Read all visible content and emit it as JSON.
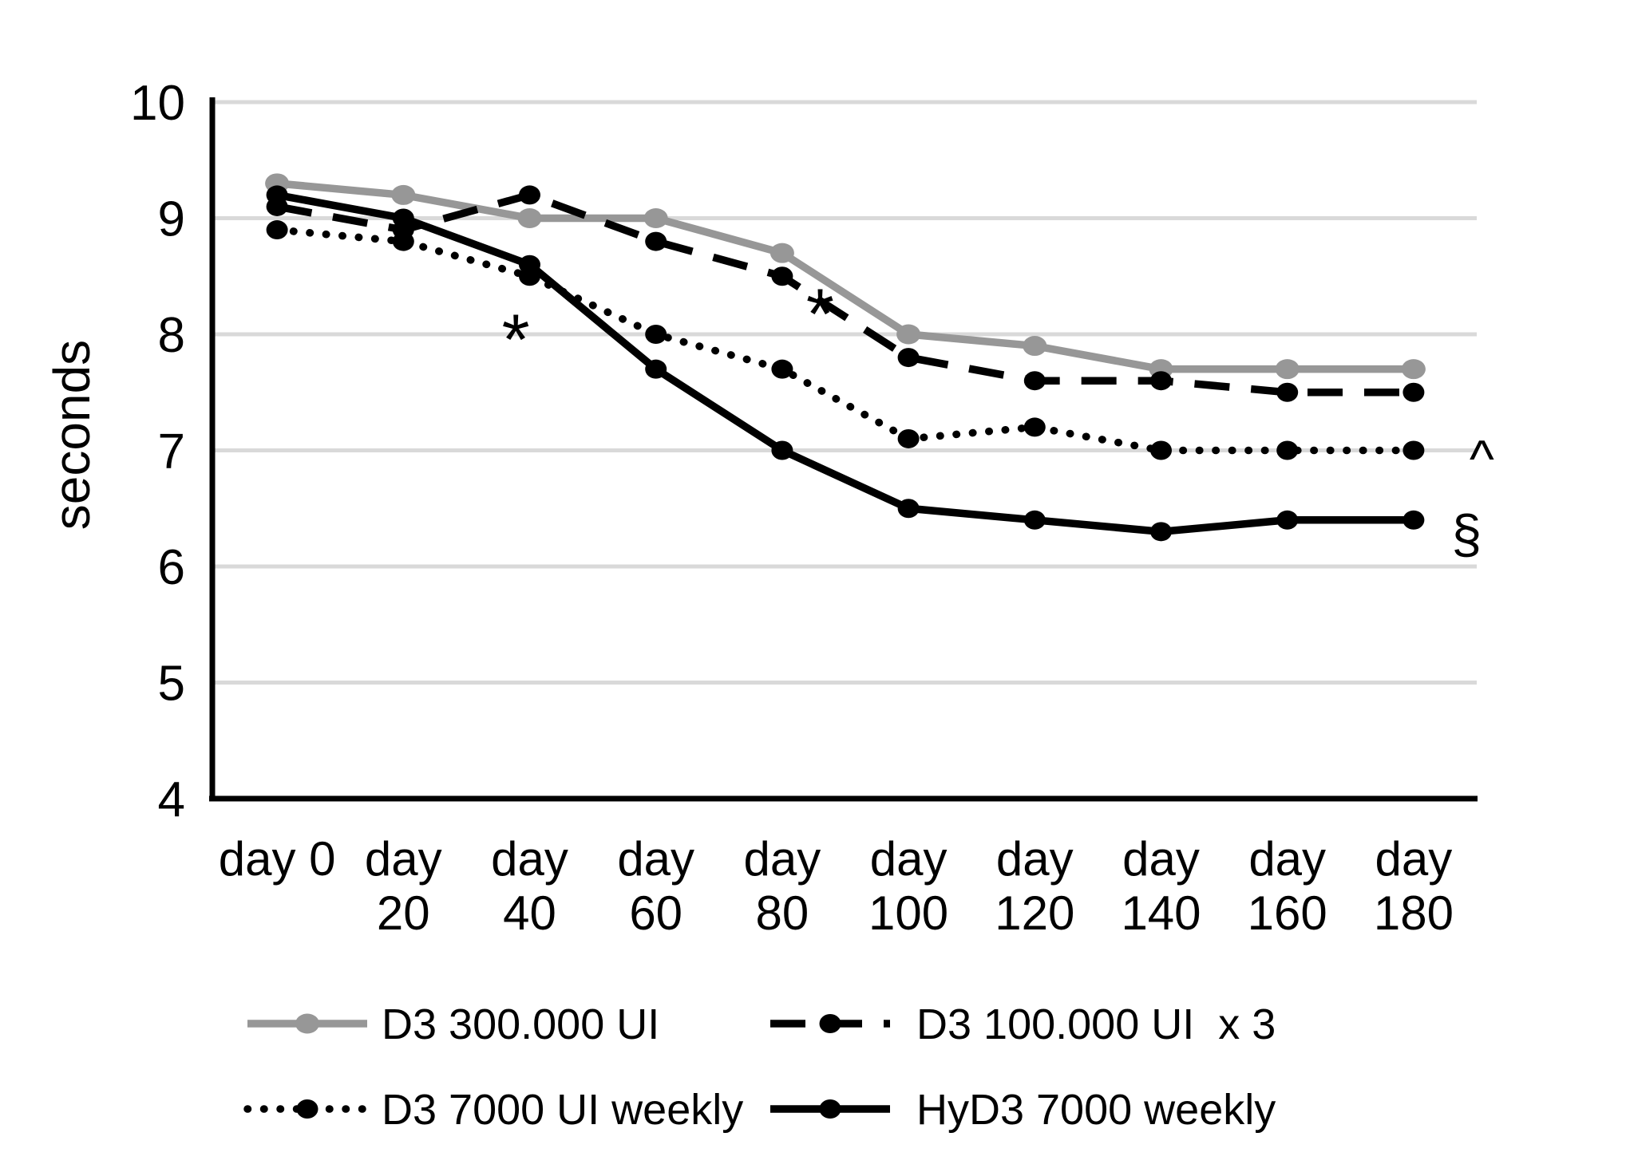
{
  "chart_data": {
    "type": "line",
    "title": "",
    "ylabel": "seconds",
    "xlabel": "",
    "grid": true,
    "legend_position": "bottom",
    "ylim": [
      4,
      10
    ],
    "yticks": [
      10,
      9,
      8,
      7,
      6,
      5,
      4
    ],
    "categories": [
      "day 0",
      "day 20",
      "day 40",
      "day 60",
      "day 80",
      "day 100",
      "day 120",
      "day 140",
      "day 160",
      "day 180"
    ],
    "x_tick_labels_line1": [
      "day 0",
      "day",
      "day",
      "day",
      "day",
      "day",
      "day",
      "day",
      "day",
      "day"
    ],
    "x_tick_labels_line2": [
      "",
      "20",
      "40",
      "60",
      "80",
      "100",
      "120",
      "140",
      "160",
      "180"
    ],
    "series": [
      {
        "name": "D3 300.000 UI",
        "color": "#979797",
        "style": "solid",
        "values": [
          9.3,
          9.2,
          9.0,
          9.0,
          8.7,
          8.0,
          7.9,
          7.7,
          7.7,
          7.7
        ]
      },
      {
        "name": "D3 100.000 UI  x 3",
        "color": "#000000",
        "style": "dashed",
        "values": [
          9.1,
          8.9,
          9.2,
          8.8,
          8.5,
          7.8,
          7.6,
          7.6,
          7.5,
          7.5
        ]
      },
      {
        "name": "D3 7000 UI weekly",
        "color": "#000000",
        "style": "dotted",
        "values": [
          8.9,
          8.8,
          8.5,
          8.0,
          7.7,
          7.1,
          7.2,
          7.0,
          7.0,
          7.0
        ]
      },
      {
        "name": "HyD3 7000 weekly",
        "color": "#000000",
        "style": "solid",
        "values": [
          9.2,
          9.0,
          8.6,
          7.7,
          7.0,
          6.5,
          6.4,
          6.3,
          6.4,
          6.4
        ]
      }
    ],
    "annotations": [
      {
        "text": "*",
        "x_index": 1.89,
        "y_value": 8.1
      },
      {
        "text": "*",
        "x_index": 4.3,
        "y_value": 8.32
      },
      {
        "text": "^",
        "x_index": 9.54,
        "y_value": 7.0
      },
      {
        "text": "§",
        "x_index": 9.42,
        "y_value": 6.3
      }
    ]
  },
  "colors": {
    "gridline": "#d9d9d9",
    "axis": "#000000",
    "text": "#000000",
    "background": "#ffffff",
    "gray_series": "#979797"
  }
}
